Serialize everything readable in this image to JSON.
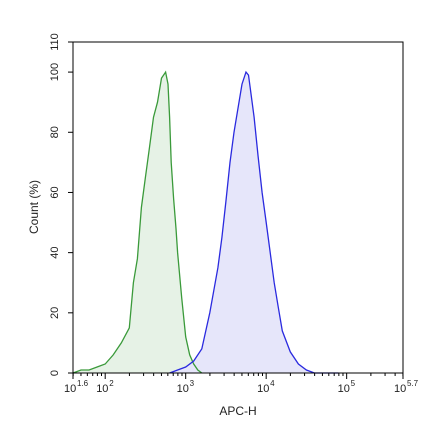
{
  "chart_data": {
    "type": "area",
    "xlabel": "APC-H",
    "ylabel": "Count (%)",
    "x_scale": "log",
    "xlim": [
      1.6,
      5.7
    ],
    "ylim": [
      0,
      110
    ],
    "x_ticks": [
      {
        "value": 1.6,
        "base": "10",
        "exp": "1.6"
      },
      {
        "value": 2,
        "base": "10",
        "exp": "2"
      },
      {
        "value": 3,
        "base": "10",
        "exp": "3"
      },
      {
        "value": 4,
        "base": "10",
        "exp": "4"
      },
      {
        "value": 5,
        "base": "10",
        "exp": "5"
      },
      {
        "value": 5.7,
        "base": "10",
        "exp": "5.7"
      }
    ],
    "y_ticks": [
      "0",
      "20",
      "40",
      "60",
      "80",
      "100",
      "110"
    ],
    "grid": false,
    "legend": "none",
    "series": [
      {
        "color": "#3a9a3a",
        "fill": "#e6f2e6",
        "x": [
          1.6,
          1.7,
          1.8,
          1.9,
          2.0,
          2.1,
          2.2,
          2.3,
          2.35,
          2.4,
          2.45,
          2.5,
          2.55,
          2.6,
          2.65,
          2.7,
          2.75,
          2.78,
          2.8,
          2.82,
          2.85,
          2.88,
          2.9,
          2.95,
          3.0,
          3.05,
          3.1,
          3.15,
          3.2
        ],
        "y": [
          0,
          1,
          1,
          2,
          3,
          6,
          10,
          15,
          30,
          38,
          55,
          65,
          75,
          85,
          90,
          98,
          100,
          96,
          85,
          70,
          58,
          48,
          40,
          25,
          12,
          6,
          3,
          1,
          0
        ]
      },
      {
        "color": "#2a2adf",
        "fill": "#e6e6fa",
        "x": [
          2.8,
          2.9,
          3.0,
          3.1,
          3.2,
          3.3,
          3.4,
          3.45,
          3.5,
          3.55,
          3.6,
          3.65,
          3.7,
          3.75,
          3.78,
          3.8,
          3.85,
          3.9,
          3.95,
          4.0,
          4.05,
          4.1,
          4.15,
          4.2,
          4.3,
          4.4,
          4.5,
          4.6,
          4.7,
          4.8,
          4.9
        ],
        "y": [
          0,
          1,
          2,
          4,
          8,
          20,
          35,
          45,
          57,
          70,
          80,
          88,
          96,
          100,
          99,
          95,
          85,
          72,
          60,
          50,
          40,
          30,
          22,
          14,
          7,
          3,
          1,
          0,
          0,
          0,
          0
        ]
      }
    ]
  }
}
